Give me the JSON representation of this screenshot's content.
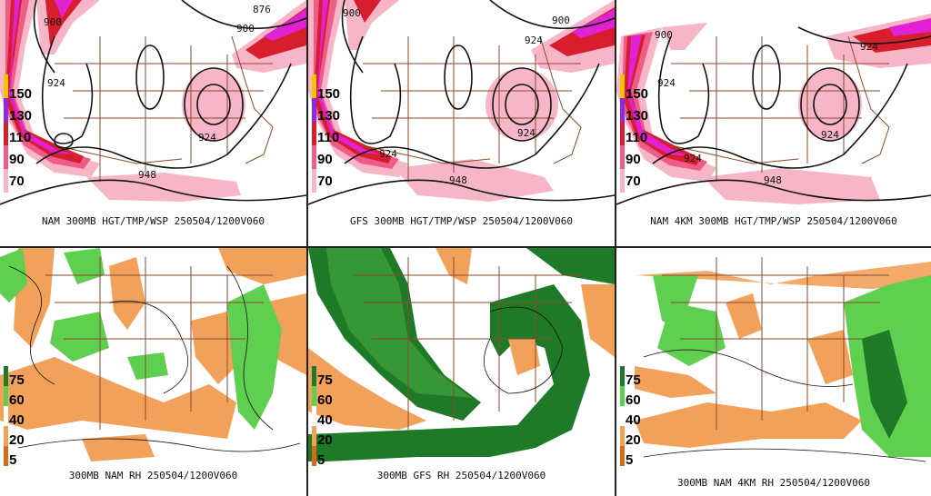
{
  "colors": {
    "wind_light": "#f7b6c8",
    "wind_mid": "#ee5d8a",
    "wind_red": "#d81e2c",
    "wind_magenta": "#e021d4",
    "wind_purple": "#8a2be2",
    "rh_dry": "#f2a15a",
    "rh_moist_light": "#5fcf4f",
    "rh_moist_dark": "#1f7a28",
    "contour": "#111111",
    "borders": "#8b4a2b",
    "legend_yellow": "#f2c500"
  },
  "top_row": {
    "legend_labels": [
      "150",
      "130",
      "110",
      "90",
      "70"
    ],
    "panels": [
      {
        "caption": "NAM 300MB HGT/TMP/WSP 250504/1200V060",
        "contour_labels": [
          "900",
          "876",
          "900",
          "924",
          "924",
          "948"
        ]
      },
      {
        "caption": "GFS 300MB HGT/TMP/WSP 250504/1200V060",
        "contour_labels": [
          "900",
          "900",
          "924",
          "924",
          "924",
          "948"
        ]
      },
      {
        "caption": "NAM 4KM 300MB HGT/TMP/WSP 250504/1200V060",
        "contour_labels": [
          "900",
          "924",
          "924",
          "924",
          "924",
          "948"
        ]
      }
    ]
  },
  "bottom_row": {
    "legend_labels": [
      "75",
      "60",
      "40",
      "20",
      "5"
    ],
    "panels": [
      {
        "caption": "300MB NAM RH 250504/1200V060"
      },
      {
        "caption": "300MB GFS RH 250504/1200V060"
      },
      {
        "caption": "300MB NAM 4KM RH 250504/1200V060"
      }
    ]
  }
}
